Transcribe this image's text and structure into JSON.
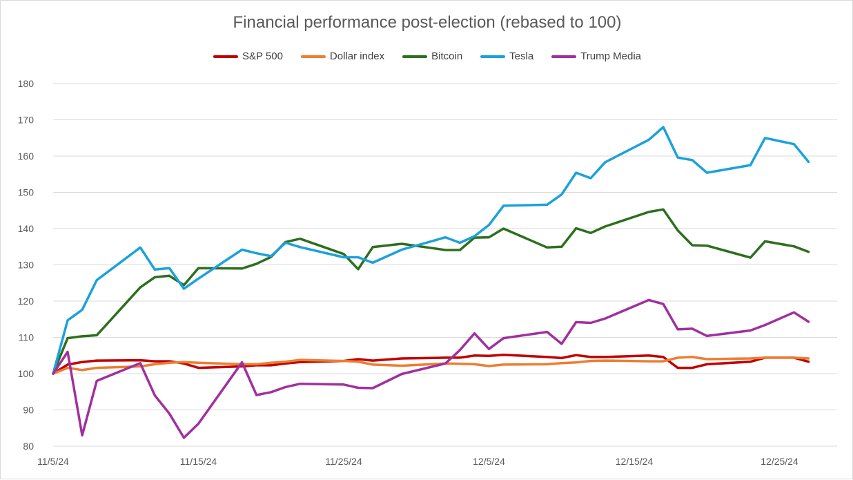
{
  "chart_data": {
    "type": "line",
    "title": "Financial performance post-election (rebased to 100)",
    "xlabel": "",
    "ylabel": "",
    "ylim": [
      80,
      180
    ],
    "yticks": [
      "80",
      "90",
      "100",
      "110",
      "120",
      "130",
      "140",
      "150",
      "160",
      "170",
      "180"
    ],
    "x_range": [
      "11/5/24",
      "12/28/24"
    ],
    "xticks": [
      "11/5/24",
      "11/15/24",
      "11/25/24",
      "12/5/24",
      "12/15/24",
      "12/25/24"
    ],
    "grid": "horizontal",
    "legend_position": "top",
    "series": [
      {
        "name": "S&P 500",
        "color": "#c00000",
        "points": [
          [
            "11/5/24",
            100
          ],
          [
            "11/6/24",
            102.5
          ],
          [
            "11/7/24",
            103.2
          ],
          [
            "11/8/24",
            103.6
          ],
          [
            "11/11/24",
            103.7
          ],
          [
            "11/12/24",
            103.4
          ],
          [
            "11/13/24",
            103.4
          ],
          [
            "11/14/24",
            102.8
          ],
          [
            "11/15/24",
            101.6
          ],
          [
            "11/18/24",
            102.0
          ],
          [
            "11/19/24",
            102.3
          ],
          [
            "11/20/24",
            102.3
          ],
          [
            "11/21/24",
            102.8
          ],
          [
            "11/22/24",
            103.2
          ],
          [
            "11/25/24",
            103.5
          ],
          [
            "11/26/24",
            104.0
          ],
          [
            "11/27/24",
            103.6
          ],
          [
            "11/29/24",
            104.2
          ],
          [
            "12/2/24",
            104.4
          ],
          [
            "12/3/24",
            104.4
          ],
          [
            "12/4/24",
            105.0
          ],
          [
            "12/5/24",
            104.9
          ],
          [
            "12/6/24",
            105.2
          ],
          [
            "12/9/24",
            104.6
          ],
          [
            "12/10/24",
            104.3
          ],
          [
            "12/11/24",
            105.1
          ],
          [
            "12/12/24",
            104.6
          ],
          [
            "12/13/24",
            104.6
          ],
          [
            "12/16/24",
            105.0
          ],
          [
            "12/17/24",
            104.6
          ],
          [
            "12/18/24",
            101.6
          ],
          [
            "12/19/24",
            101.6
          ],
          [
            "12/20/24",
            102.6
          ],
          [
            "12/23/24",
            103.3
          ],
          [
            "12/24/24",
            104.4
          ],
          [
            "12/26/24",
            104.4
          ],
          [
            "12/27/24",
            103.3
          ]
        ]
      },
      {
        "name": "Dollar index",
        "color": "#ed7d31",
        "points": [
          [
            "11/5/24",
            100
          ],
          [
            "11/6/24",
            101.6
          ],
          [
            "11/7/24",
            101.0
          ],
          [
            "11/8/24",
            101.6
          ],
          [
            "11/11/24",
            102.0
          ],
          [
            "11/12/24",
            102.6
          ],
          [
            "11/13/24",
            103.0
          ],
          [
            "11/14/24",
            103.2
          ],
          [
            "11/15/24",
            103.0
          ],
          [
            "11/18/24",
            102.6
          ],
          [
            "11/19/24",
            102.6
          ],
          [
            "11/20/24",
            103.0
          ],
          [
            "11/21/24",
            103.3
          ],
          [
            "11/22/24",
            103.8
          ],
          [
            "11/25/24",
            103.5
          ],
          [
            "11/26/24",
            103.3
          ],
          [
            "11/27/24",
            102.5
          ],
          [
            "11/29/24",
            102.2
          ],
          [
            "12/2/24",
            102.8
          ],
          [
            "12/3/24",
            102.7
          ],
          [
            "12/4/24",
            102.6
          ],
          [
            "12/5/24",
            102.1
          ],
          [
            "12/6/24",
            102.5
          ],
          [
            "12/9/24",
            102.6
          ],
          [
            "12/10/24",
            102.9
          ],
          [
            "12/11/24",
            103.1
          ],
          [
            "12/12/24",
            103.5
          ],
          [
            "12/13/24",
            103.6
          ],
          [
            "12/16/24",
            103.4
          ],
          [
            "12/17/24",
            103.4
          ],
          [
            "12/18/24",
            104.4
          ],
          [
            "12/19/24",
            104.6
          ],
          [
            "12/20/24",
            104.0
          ],
          [
            "12/23/24",
            104.2
          ],
          [
            "12/24/24",
            104.4
          ],
          [
            "12/26/24",
            104.4
          ],
          [
            "12/27/24",
            104.2
          ]
        ]
      },
      {
        "name": "Bitcoin",
        "color": "#2e6e1e",
        "points": [
          [
            "11/5/24",
            100
          ],
          [
            "11/6/24",
            109.8
          ],
          [
            "11/7/24",
            110.3
          ],
          [
            "11/8/24",
            110.6
          ],
          [
            "11/11/24",
            123.8
          ],
          [
            "11/12/24",
            126.6
          ],
          [
            "11/13/24",
            127.0
          ],
          [
            "11/14/24",
            124.4
          ],
          [
            "11/15/24",
            129.1
          ],
          [
            "11/18/24",
            129.0
          ],
          [
            "11/19/24",
            130.3
          ],
          [
            "11/20/24",
            132.2
          ],
          [
            "11/21/24",
            136.3
          ],
          [
            "11/22/24",
            137.2
          ],
          [
            "11/25/24",
            133.0
          ],
          [
            "11/26/24",
            128.8
          ],
          [
            "11/27/24",
            134.9
          ],
          [
            "11/29/24",
            135.8
          ],
          [
            "12/2/24",
            134.1
          ],
          [
            "12/3/24",
            134.1
          ],
          [
            "12/4/24",
            137.5
          ],
          [
            "12/5/24",
            137.6
          ],
          [
            "12/6/24",
            140.0
          ],
          [
            "12/9/24",
            134.8
          ],
          [
            "12/10/24",
            135.0
          ],
          [
            "12/11/24",
            140.1
          ],
          [
            "12/12/24",
            138.8
          ],
          [
            "12/13/24",
            140.6
          ],
          [
            "12/16/24",
            144.6
          ],
          [
            "12/17/24",
            145.3
          ],
          [
            "12/18/24",
            139.5
          ],
          [
            "12/19/24",
            135.4
          ],
          [
            "12/20/24",
            135.3
          ],
          [
            "12/23/24",
            132.0
          ],
          [
            "12/24/24",
            136.5
          ],
          [
            "12/26/24",
            135.1
          ],
          [
            "12/27/24",
            133.6
          ]
        ]
      },
      {
        "name": "Tesla",
        "color": "#1ba1db",
        "points": [
          [
            "11/5/24",
            100
          ],
          [
            "11/6/24",
            114.7
          ],
          [
            "11/7/24",
            117.6
          ],
          [
            "11/8/24",
            125.8
          ],
          [
            "11/11/24",
            134.8
          ],
          [
            "11/12/24",
            128.7
          ],
          [
            "11/13/24",
            129.1
          ],
          [
            "11/14/24",
            123.4
          ],
          [
            "11/15/24",
            126.2
          ],
          [
            "11/18/24",
            134.2
          ],
          [
            "11/19/24",
            133.2
          ],
          [
            "11/20/24",
            132.4
          ],
          [
            "11/21/24",
            136.1
          ],
          [
            "11/22/24",
            134.9
          ],
          [
            "11/25/24",
            132.1
          ],
          [
            "11/26/24",
            132.1
          ],
          [
            "11/27/24",
            130.6
          ],
          [
            "11/29/24",
            134.2
          ],
          [
            "12/2/24",
            137.6
          ],
          [
            "12/3/24",
            136.1
          ],
          [
            "12/4/24",
            137.9
          ],
          [
            "12/5/24",
            141.0
          ],
          [
            "12/6/24",
            146.3
          ],
          [
            "12/9/24",
            146.6
          ],
          [
            "12/10/24",
            149.4
          ],
          [
            "12/11/24",
            155.4
          ],
          [
            "12/12/24",
            153.9
          ],
          [
            "12/13/24",
            158.3
          ],
          [
            "12/16/24",
            164.5
          ],
          [
            "12/17/24",
            168.0
          ],
          [
            "12/18/24",
            159.6
          ],
          [
            "12/19/24",
            158.9
          ],
          [
            "12/20/24",
            155.4
          ],
          [
            "12/23/24",
            157.5
          ],
          [
            "12/24/24",
            165.0
          ],
          [
            "12/26/24",
            163.3
          ],
          [
            "12/27/24",
            158.4
          ]
        ]
      },
      {
        "name": "Trump Media",
        "color": "#a0309e",
        "points": [
          [
            "11/5/24",
            100
          ],
          [
            "11/6/24",
            106.0
          ],
          [
            "11/7/24",
            83.0
          ],
          [
            "11/8/24",
            98.0
          ],
          [
            "11/11/24",
            102.9
          ],
          [
            "11/12/24",
            94.0
          ],
          [
            "11/13/24",
            89.0
          ],
          [
            "11/14/24",
            82.3
          ],
          [
            "11/15/24",
            86.2
          ],
          [
            "11/18/24",
            103.1
          ],
          [
            "11/19/24",
            94.1
          ],
          [
            "11/20/24",
            94.9
          ],
          [
            "11/21/24",
            96.3
          ],
          [
            "11/22/24",
            97.2
          ],
          [
            "11/25/24",
            97.0
          ],
          [
            "11/26/24",
            96.1
          ],
          [
            "11/27/24",
            96.0
          ],
          [
            "11/29/24",
            99.9
          ],
          [
            "12/2/24",
            102.8
          ],
          [
            "12/3/24",
            106.5
          ],
          [
            "12/4/24",
            111.1
          ],
          [
            "12/5/24",
            106.8
          ],
          [
            "12/6/24",
            109.8
          ],
          [
            "12/9/24",
            111.5
          ],
          [
            "12/10/24",
            108.2
          ],
          [
            "12/11/24",
            114.2
          ],
          [
            "12/12/24",
            114.0
          ],
          [
            "12/13/24",
            115.2
          ],
          [
            "12/16/24",
            120.3
          ],
          [
            "12/17/24",
            119.2
          ],
          [
            "12/18/24",
            112.2
          ],
          [
            "12/19/24",
            112.4
          ],
          [
            "12/20/24",
            110.4
          ],
          [
            "12/23/24",
            111.9
          ],
          [
            "12/24/24",
            113.4
          ],
          [
            "12/26/24",
            116.9
          ],
          [
            "12/27/24",
            114.3
          ]
        ]
      }
    ]
  }
}
